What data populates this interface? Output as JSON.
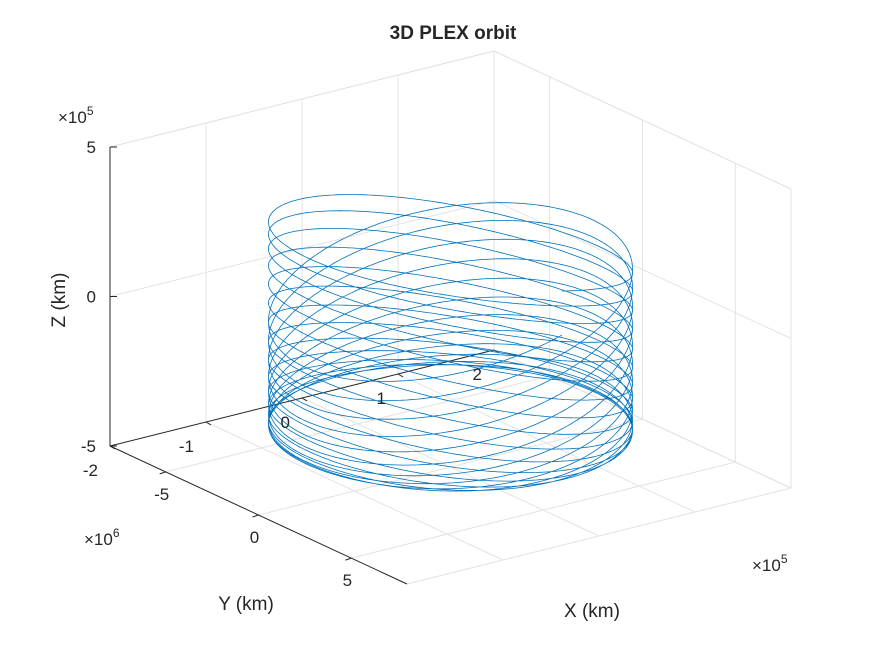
{
  "chart_data": {
    "type": "line",
    "title": "3D PLEX orbit",
    "xlabel": "X (km)",
    "ylabel": "Y (km)",
    "zlabel": "Z (km)",
    "xlim": [
      -800000,
      800000
    ],
    "ylim": [
      -2000000,
      2000000
    ],
    "zlim": [
      -500000,
      500000
    ],
    "x_ticks": [
      "-5",
      "0",
      "5"
    ],
    "y_ticks": [
      "-2",
      "-1",
      "0",
      "1",
      "2"
    ],
    "z_ticks": [
      "-5",
      "0",
      "5"
    ],
    "x_multiplier": {
      "base": "×10",
      "exp": "5"
    },
    "y_multiplier": {
      "base": "×10",
      "exp": "6"
    },
    "z_multiplier": {
      "base": "×10",
      "exp": "5"
    },
    "grid": true,
    "series": [
      {
        "color": "#0072bd",
        "form": "quasi-periodic orbit tracing a cylinder of radius 600000 km along Y in [-1500000, 1500000], Z in [-370000, 370000]",
        "radius_x": 600000,
        "y_extent": [
          -1500000,
          1500000
        ],
        "z_extent": [
          -370000,
          370000
        ],
        "revolutions": 24
      }
    ]
  }
}
